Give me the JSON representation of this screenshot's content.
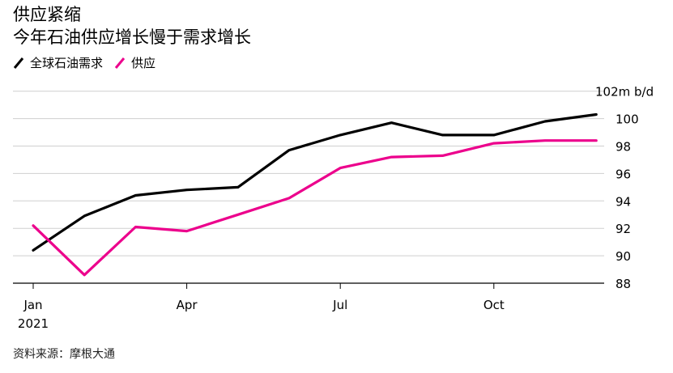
{
  "header": {
    "title": "供应紧缩",
    "subtitle": "今年石油供应增长慢于需求增长"
  },
  "legend": [
    {
      "label": "全球石油需求",
      "color": "#000000"
    },
    {
      "label": "供应",
      "color": "#ec008c"
    }
  ],
  "source": "资料来源：摩根大通",
  "chart_data": {
    "type": "line",
    "x": [
      "Jan",
      "Feb",
      "Mar",
      "Apr",
      "May",
      "Jun",
      "Jul",
      "Aug",
      "Sep",
      "Oct",
      "Nov",
      "Dec"
    ],
    "x_tick_labels": [
      "Jan",
      "Apr",
      "Jul",
      "Oct"
    ],
    "x_year_label": "2021",
    "y_unit_label": "102m b/d",
    "y_ticks": [
      88,
      90,
      92,
      94,
      96,
      98,
      100
    ],
    "ylim": [
      88,
      102
    ],
    "grid": true,
    "legend_position": "top-left",
    "series": [
      {
        "name": "全球石油需求",
        "color": "#000000",
        "values": [
          90.4,
          92.9,
          94.4,
          94.8,
          95.0,
          97.7,
          98.8,
          99.7,
          98.8,
          98.8,
          99.8,
          100.3
        ]
      },
      {
        "name": "供应",
        "color": "#ec008c",
        "values": [
          92.2,
          88.6,
          92.1,
          91.8,
          93.0,
          94.2,
          96.4,
          97.2,
          97.3,
          98.2,
          98.4,
          98.4
        ]
      }
    ]
  }
}
